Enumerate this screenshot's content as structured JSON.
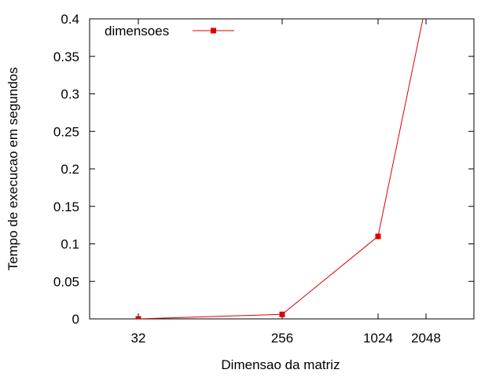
{
  "chart_data": {
    "type": "line",
    "title": "",
    "xlabel": "Dimensao da matriz",
    "ylabel": "Tempo de execucao em segundos",
    "x_ticks": [
      {
        "value": 32,
        "label": "32"
      },
      {
        "value": 256,
        "label": "256"
      },
      {
        "value": 1024,
        "label": "1024"
      },
      {
        "value": 2048,
        "label": "2048"
      }
    ],
    "y_ticks": [
      {
        "value": 0,
        "label": "0"
      },
      {
        "value": 0.05,
        "label": "0.05"
      },
      {
        "value": 0.1,
        "label": "0.1"
      },
      {
        "value": 0.15,
        "label": "0.15"
      },
      {
        "value": 0.2,
        "label": "0.2"
      },
      {
        "value": 0.25,
        "label": "0.25"
      },
      {
        "value": 0.3,
        "label": "0.3"
      },
      {
        "value": 0.35,
        "label": "0.35"
      },
      {
        "value": 0.4,
        "label": "0.4"
      }
    ],
    "ylim": [
      0,
      0.4
    ],
    "grid": false,
    "legend_position": "top-left",
    "series": [
      {
        "name": "dimensoes",
        "color": "#dd0000",
        "marker": "square",
        "points": [
          {
            "x": 32,
            "y": 0.0
          },
          {
            "x": 256,
            "y": 0.006
          },
          {
            "x": 1024,
            "y": 0.11
          },
          {
            "x": 2048,
            "y": 0.42
          }
        ]
      }
    ]
  }
}
